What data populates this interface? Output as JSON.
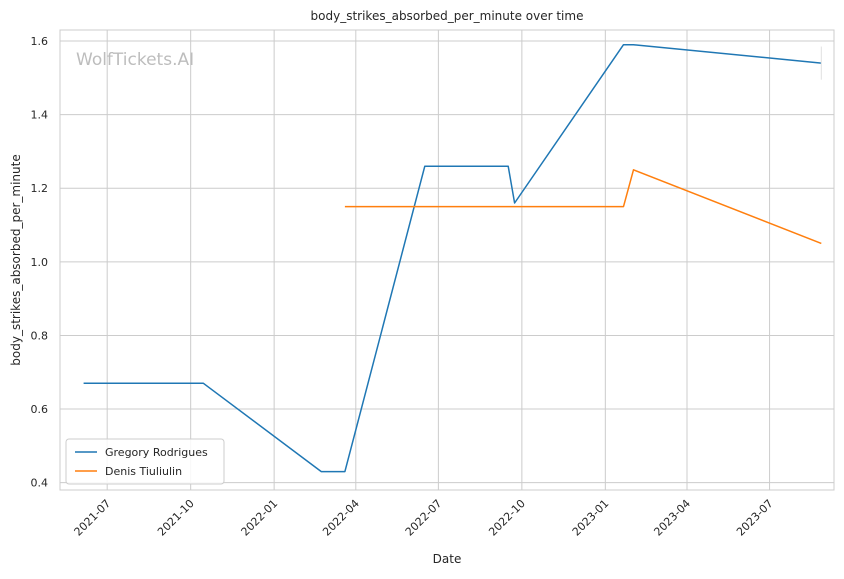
{
  "chart_data": {
    "type": "line",
    "title": "body_strikes_absorbed_per_minute over time",
    "xlabel": "Date",
    "ylabel": "body_strikes_absorbed_per_minute",
    "watermark": "WolfTickets.AI",
    "x_ticks": [
      "2021-07",
      "2021-10",
      "2022-01",
      "2022-04",
      "2022-07",
      "2022-10",
      "2023-01",
      "2023-04",
      "2023-07"
    ],
    "y_ticks": [
      "0.4",
      "0.6",
      "0.8",
      "1.0",
      "1.2",
      "1.4",
      "1.6"
    ],
    "ylim": [
      0.38,
      1.63
    ],
    "xlim": [
      "2021-05-10",
      "2023-09-10"
    ],
    "grid": true,
    "legend_position": "lower-left",
    "colors": {
      "Gregory Rodrigues": "#1f77b4",
      "Denis Tiuliulin": "#ff7f0e"
    },
    "series": [
      {
        "name": "Gregory Rodrigues",
        "x": [
          "2021-06-05",
          "2021-10-15",
          "2022-02-22",
          "2022-03-20",
          "2022-06-16",
          "2022-09-16",
          "2022-09-23",
          "2023-01-21",
          "2023-02-01",
          "2023-08-27"
        ],
        "y": [
          0.67,
          0.67,
          0.43,
          0.43,
          1.26,
          1.26,
          1.16,
          1.59,
          1.59,
          1.54
        ]
      },
      {
        "name": "Denis Tiuliulin",
        "x": [
          "2022-03-20",
          "2023-01-21",
          "2023-02-01",
          "2023-08-27"
        ],
        "y": [
          1.15,
          1.15,
          1.25,
          1.05
        ]
      }
    ]
  }
}
